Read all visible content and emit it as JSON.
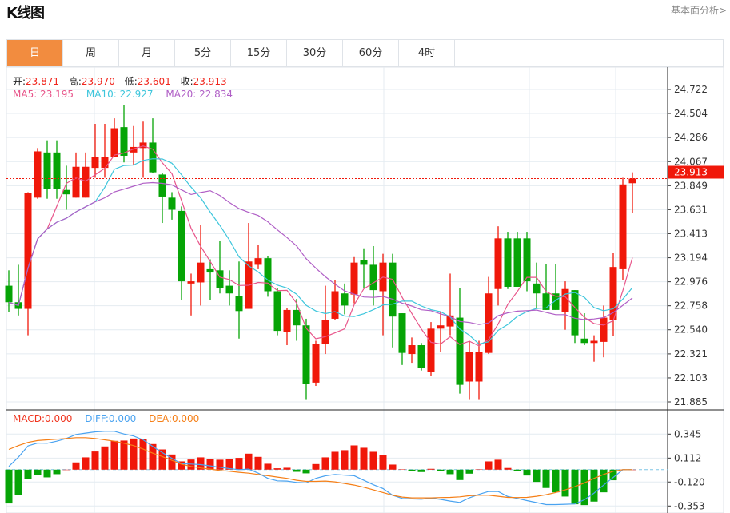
{
  "header": {
    "title": "K线图",
    "link": "基本面分析>"
  },
  "tabs": [
    {
      "label": "日",
      "active": true
    },
    {
      "label": "周"
    },
    {
      "label": "月"
    },
    {
      "label": "5分"
    },
    {
      "label": "15分"
    },
    {
      "label": "30分"
    },
    {
      "label": "60分"
    },
    {
      "label": "4时"
    }
  ],
  "legend": {
    "open_label": "开:",
    "open": "23.871",
    "high_label": "高:",
    "high": "23.970",
    "low_label": "低:",
    "low": "23.601",
    "close_label": "收:",
    "close": "23.913",
    "ma5": "MA5: 23.195",
    "ma10": "MA10: 22.927",
    "ma20": "MA20: 22.834"
  },
  "macd_legend": {
    "macd": "MACD:0.000",
    "diff": "DIFF:0.000",
    "dea": "DEA:0.000"
  },
  "colors": {
    "up": "#f0180a",
    "down": "#06a406",
    "ma5": "#e8558a",
    "ma10": "#3ec6dc",
    "ma20": "#b05fc6",
    "diff": "#4aa3f0",
    "dea": "#f57f17",
    "accent": "#f28c3f"
  },
  "chart_data": [
    {
      "type": "candlestick",
      "title": "",
      "ylim": [
        21.885,
        24.722
      ],
      "y_ticks": [
        "24.722",
        "24.504",
        "24.286",
        "24.067",
        "23.849",
        "23.631",
        "23.413",
        "23.194",
        "22.976",
        "22.758",
        "22.540",
        "22.321",
        "22.103",
        "21.885"
      ],
      "last_price": "23.913",
      "grid": true,
      "ohlc_fields": [
        "open",
        "high",
        "low",
        "close"
      ],
      "ohlc": [
        [
          22.94,
          23.08,
          22.7,
          22.79
        ],
        [
          22.79,
          23.13,
          22.67,
          22.73
        ],
        [
          22.73,
          23.79,
          22.49,
          23.78
        ],
        [
          23.74,
          24.19,
          23.73,
          24.16
        ],
        [
          24.15,
          24.26,
          23.73,
          23.82
        ],
        [
          24.15,
          24.26,
          23.73,
          23.82
        ],
        [
          23.81,
          24.03,
          23.63,
          23.77
        ],
        [
          23.74,
          24.15,
          23.74,
          24.02
        ],
        [
          23.74,
          24.15,
          23.74,
          24.02
        ],
        [
          24.01,
          24.41,
          23.92,
          24.11
        ],
        [
          24.01,
          24.41,
          23.92,
          24.11
        ],
        [
          24.11,
          24.46,
          24.11,
          24.37
        ],
        [
          24.38,
          24.58,
          24.06,
          24.12
        ],
        [
          24.15,
          24.39,
          24.04,
          24.2
        ],
        [
          24.19,
          24.43,
          23.92,
          24.24
        ],
        [
          24.24,
          24.46,
          23.96,
          23.97
        ],
        [
          23.95,
          23.96,
          23.51,
          23.75
        ],
        [
          23.74,
          23.79,
          23.54,
          23.63
        ],
        [
          23.62,
          23.66,
          22.81,
          22.98
        ],
        [
          22.96,
          23.05,
          22.67,
          22.98
        ],
        [
          22.97,
          23.49,
          22.76,
          23.15
        ],
        [
          23.09,
          23.18,
          22.81,
          23.06
        ],
        [
          23.08,
          23.35,
          22.87,
          22.92
        ],
        [
          22.94,
          23.08,
          22.76,
          22.87
        ],
        [
          22.85,
          23.16,
          22.46,
          22.71
        ],
        [
          22.73,
          23.51,
          22.73,
          23.16
        ],
        [
          23.13,
          23.31,
          23.09,
          23.19
        ],
        [
          23.19,
          23.21,
          22.84,
          22.89
        ],
        [
          22.89,
          22.92,
          22.49,
          22.53
        ],
        [
          22.52,
          22.74,
          22.4,
          22.72
        ],
        [
          22.72,
          22.82,
          22.44,
          22.58
        ],
        [
          22.58,
          22.64,
          21.91,
          22.05
        ],
        [
          22.06,
          22.44,
          22.03,
          22.41
        ],
        [
          22.41,
          22.94,
          22.32,
          22.63
        ],
        [
          22.64,
          22.99,
          22.63,
          22.89
        ],
        [
          22.87,
          22.96,
          22.68,
          22.76
        ],
        [
          22.86,
          23.2,
          22.78,
          23.15
        ],
        [
          23.17,
          23.28,
          22.92,
          23.13
        ],
        [
          23.13,
          23.3,
          22.76,
          22.9
        ],
        [
          22.89,
          23.23,
          22.49,
          23.15
        ],
        [
          23.15,
          23.23,
          22.38,
          22.66
        ],
        [
          22.69,
          22.69,
          22.22,
          22.33
        ],
        [
          22.32,
          22.47,
          22.24,
          22.4
        ],
        [
          22.4,
          22.42,
          22.17,
          22.19
        ],
        [
          22.16,
          22.61,
          22.12,
          22.55
        ],
        [
          22.55,
          22.7,
          22.34,
          22.58
        ],
        [
          22.57,
          23.05,
          22.49,
          22.67
        ],
        [
          22.65,
          22.92,
          21.96,
          22.04
        ],
        [
          22.07,
          22.44,
          21.91,
          22.34
        ],
        [
          22.07,
          22.44,
          21.91,
          22.34
        ],
        [
          22.33,
          23.02,
          22.32,
          22.87
        ],
        [
          22.91,
          23.48,
          22.76,
          23.37
        ],
        [
          23.37,
          23.43,
          22.91,
          22.93
        ],
        [
          23.37,
          23.43,
          22.93,
          22.93
        ],
        [
          23.37,
          23.43,
          22.89,
          22.98
        ],
        [
          22.96,
          23.15,
          22.73,
          22.87
        ],
        [
          22.87,
          23.14,
          22.72,
          22.72
        ],
        [
          22.87,
          23.14,
          22.72,
          22.72
        ],
        [
          22.7,
          22.98,
          22.54,
          22.91
        ],
        [
          22.9,
          22.9,
          22.42,
          22.49
        ],
        [
          22.46,
          22.69,
          22.4,
          22.42
        ],
        [
          22.42,
          22.49,
          22.25,
          22.44
        ],
        [
          22.43,
          22.76,
          22.29,
          22.65
        ],
        [
          22.63,
          23.24,
          22.48,
          23.11
        ],
        [
          23.09,
          23.92,
          22.99,
          23.86
        ],
        [
          23.871,
          23.97,
          23.601,
          23.913
        ]
      ],
      "moving_averages": [
        5,
        10,
        20
      ]
    },
    {
      "type": "bar+line",
      "title": "",
      "ylim": [
        -0.353,
        0.345
      ],
      "y_ticks": [
        "0.345",
        "0.112",
        "-0.120",
        "-0.353"
      ],
      "series": [
        {
          "name": "MACD",
          "type": "bar",
          "values": [
            -0.328,
            -0.248,
            -0.09,
            -0.052,
            -0.075,
            -0.044,
            0,
            0.07,
            0.119,
            0.176,
            0.225,
            0.279,
            0.282,
            0.302,
            0.297,
            0.248,
            0.196,
            0.147,
            0.08,
            0.098,
            0.119,
            0.106,
            0.096,
            0.103,
            0.114,
            0.155,
            0.124,
            0.057,
            0.013,
            0.018,
            -0.021,
            -0.036,
            0.054,
            0.119,
            0.173,
            0.189,
            0.235,
            0.212,
            0.173,
            0.145,
            0.049,
            0.003,
            -0.01,
            -0.023,
            0.008,
            -0.016,
            -0.044,
            -0.101,
            -0.039,
            0.003,
            0.08,
            0.096,
            0.016,
            -0.016,
            -0.057,
            -0.119,
            -0.178,
            -0.22,
            -0.261,
            -0.336,
            -0.344,
            -0.31,
            -0.22,
            -0.103,
            0,
            0
          ]
        },
        {
          "name": "DIFF",
          "type": "line",
          "values": [
            0.031,
            0.121,
            0.23,
            0.258,
            0.256,
            0.276,
            0.302,
            0.341,
            0.354,
            0.367,
            0.372,
            0.372,
            0.346,
            0.326,
            0.289,
            0.225,
            0.165,
            0.109,
            0.057,
            0.054,
            0.049,
            0.036,
            0.023,
            0.01,
            0.0,
            0.005,
            -0.034,
            -0.085,
            -0.109,
            -0.111,
            -0.124,
            -0.129,
            -0.085,
            -0.06,
            -0.047,
            -0.054,
            -0.059,
            -0.103,
            -0.147,
            -0.183,
            -0.248,
            -0.279,
            -0.284,
            -0.287,
            -0.276,
            -0.289,
            -0.305,
            -0.318,
            -0.274,
            -0.24,
            -0.212,
            -0.212,
            -0.261,
            -0.279,
            -0.3,
            -0.32,
            -0.339,
            -0.339,
            -0.336,
            -0.333,
            -0.292,
            -0.227,
            -0.15,
            -0.075,
            0,
            0
          ]
        },
        {
          "name": "DEA",
          "type": "line",
          "values": [
            0.196,
            0.233,
            0.264,
            0.282,
            0.289,
            0.295,
            0.302,
            0.31,
            0.31,
            0.302,
            0.289,
            0.276,
            0.256,
            0.233,
            0.199,
            0.16,
            0.127,
            0.09,
            0.052,
            0.031,
            0.016,
            0.005,
            -0.008,
            -0.016,
            -0.026,
            -0.034,
            -0.047,
            -0.059,
            -0.072,
            -0.085,
            -0.103,
            -0.114,
            -0.114,
            -0.111,
            -0.119,
            -0.134,
            -0.15,
            -0.171,
            -0.196,
            -0.222,
            -0.248,
            -0.266,
            -0.274,
            -0.274,
            -0.274,
            -0.271,
            -0.269,
            -0.264,
            -0.253,
            -0.248,
            -0.248,
            -0.258,
            -0.269,
            -0.271,
            -0.269,
            -0.258,
            -0.243,
            -0.222,
            -0.196,
            -0.165,
            -0.129,
            -0.085,
            -0.047,
            -0.016,
            0,
            0
          ]
        }
      ]
    }
  ]
}
